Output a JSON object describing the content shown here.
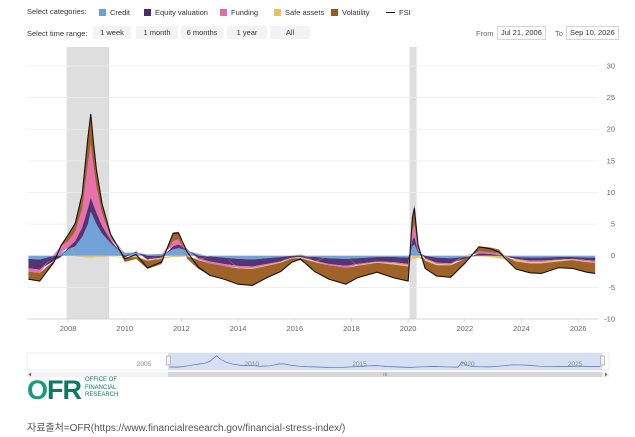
{
  "legend": {
    "title": "Select categories:",
    "items": [
      {
        "label": "Credit",
        "color": "#6a9fd8",
        "kind": "box"
      },
      {
        "label": "Equity valuation",
        "color": "#4a2a6e",
        "kind": "box"
      },
      {
        "label": "Funding",
        "color": "#e86aa8",
        "kind": "box"
      },
      {
        "label": "Safe assets",
        "color": "#e8c060",
        "kind": "box"
      },
      {
        "label": "Volatility",
        "color": "#9a5a1e",
        "kind": "box"
      },
      {
        "label": "FSI",
        "color": "#111111",
        "kind": "line"
      }
    ]
  },
  "time_range": {
    "title": "Select time range:",
    "buttons": [
      "1 week",
      "1 month",
      "6 months",
      "1 year",
      "All"
    ],
    "from_label": "From",
    "from_value": "Jul 21, 2006",
    "to_label": "To",
    "to_value": "Sep 10, 2026"
  },
  "chart_data": {
    "type": "area",
    "stacked": true,
    "x_domain": [
      2006.55,
      2026.7
    ],
    "ylim": [
      -10,
      33
    ],
    "yticks": [
      -10,
      -5,
      0,
      5,
      10,
      15,
      20,
      25,
      30
    ],
    "xticks": [
      2008,
      2010,
      2012,
      2014,
      2016,
      2018,
      2020,
      2022,
      2024,
      2026
    ],
    "grid": true,
    "legend_position": "top",
    "shaded_periods": [
      [
        2007.95,
        2009.45
      ],
      [
        2020.05,
        2020.3
      ]
    ],
    "x": [
      2006.6,
      2007.0,
      2007.5,
      2007.75,
      2008.0,
      2008.25,
      2008.5,
      2008.7,
      2008.8,
      2008.9,
      2009.0,
      2009.2,
      2009.5,
      2010.0,
      2010.4,
      2010.8,
      2011.3,
      2011.7,
      2011.9,
      2012.2,
      2012.6,
      2013.0,
      2013.5,
      2014.0,
      2014.5,
      2015.0,
      2015.5,
      2015.9,
      2016.2,
      2016.7,
      2017.2,
      2017.8,
      2018.2,
      2018.9,
      2019.5,
      2020.0,
      2020.15,
      2020.22,
      2020.35,
      2020.6,
      2021.0,
      2021.5,
      2022.0,
      2022.5,
      2022.9,
      2023.2,
      2023.8,
      2024.3,
      2024.7,
      2025.3,
      2025.8,
      2026.3,
      2026.6
    ],
    "series": [
      {
        "name": "Credit",
        "color": "#6a9fd8",
        "values": [
          -0.5,
          -0.6,
          0.0,
          0.5,
          1.0,
          1.5,
          3.0,
          5.0,
          7.0,
          6.0,
          5.0,
          3.5,
          2.0,
          0.5,
          0.5,
          0.2,
          0.3,
          1.0,
          1.2,
          0.8,
          0.3,
          -0.1,
          -0.3,
          -0.5,
          -0.6,
          -0.4,
          -0.2,
          0.0,
          0.2,
          -0.2,
          -0.4,
          -0.5,
          -0.4,
          -0.2,
          -0.2,
          -0.3,
          1.5,
          1.8,
          0.5,
          0.0,
          -0.3,
          -0.4,
          -0.2,
          0.0,
          0.0,
          -0.1,
          -0.2,
          -0.3,
          -0.3,
          -0.2,
          -0.2,
          -0.3,
          -0.3
        ]
      },
      {
        "name": "Equity valuation",
        "color": "#4a2a6e",
        "values": [
          -1.5,
          -1.6,
          -0.8,
          -0.2,
          0.3,
          0.8,
          1.5,
          2.5,
          2.2,
          2.0,
          1.8,
          1.2,
          0.5,
          -0.3,
          0.2,
          -0.6,
          -0.3,
          0.5,
          0.6,
          0.1,
          -0.4,
          -0.8,
          -1.0,
          -1.1,
          -1.1,
          -0.9,
          -0.7,
          -0.3,
          -0.2,
          -0.6,
          -0.9,
          -1.1,
          -0.9,
          -0.7,
          -0.8,
          -1.0,
          1.0,
          1.2,
          0.3,
          -0.4,
          -0.8,
          -0.8,
          -0.3,
          0.4,
          0.3,
          0.1,
          -0.3,
          -0.5,
          -0.5,
          -0.4,
          -0.3,
          -0.4,
          -0.5
        ]
      },
      {
        "name": "Funding",
        "color": "#e86aa8",
        "values": [
          -0.5,
          -0.5,
          0.2,
          1.0,
          1.0,
          1.5,
          3.0,
          7.0,
          8.5,
          6.0,
          4.0,
          2.0,
          0.5,
          0.0,
          0.0,
          -0.1,
          0.0,
          0.8,
          0.8,
          0.2,
          -0.2,
          -0.3,
          -0.3,
          -0.3,
          -0.3,
          -0.2,
          -0.1,
          0.0,
          0.0,
          -0.1,
          -0.2,
          -0.3,
          -0.2,
          -0.1,
          -0.2,
          -0.2,
          1.5,
          2.0,
          0.3,
          -0.1,
          -0.2,
          -0.2,
          0.0,
          0.3,
          0.2,
          0.3,
          -0.1,
          -0.2,
          -0.2,
          -0.1,
          -0.1,
          -0.2,
          -0.2
        ]
      },
      {
        "name": "Safe assets",
        "color": "#e8c060",
        "values": [
          0.0,
          0.0,
          0.0,
          0.0,
          0.0,
          -0.1,
          -0.2,
          -0.3,
          -0.3,
          -0.3,
          -0.2,
          -0.2,
          -0.1,
          -0.1,
          -0.2,
          -0.1,
          -0.2,
          -0.2,
          -0.2,
          -0.1,
          -0.1,
          0.0,
          0.0,
          -0.1,
          -0.1,
          -0.1,
          -0.1,
          -0.1,
          -0.2,
          -0.1,
          0.0,
          0.0,
          -0.1,
          -0.1,
          -0.2,
          -0.2,
          -0.4,
          -0.5,
          -0.3,
          -0.3,
          -0.2,
          -0.1,
          0.0,
          -0.1,
          -0.2,
          -0.3,
          -0.3,
          -0.2,
          -0.2,
          -0.2,
          -0.1,
          -0.1,
          -0.1
        ]
      },
      {
        "name": "Volatility",
        "color": "#9a5a1e",
        "values": [
          -1.2,
          -1.3,
          -0.4,
          0.3,
          1.0,
          1.5,
          2.5,
          4.5,
          5.0,
          4.0,
          3.0,
          1.7,
          0.5,
          -0.6,
          -0.3,
          -1.3,
          -0.8,
          1.4,
          1.2,
          -0.4,
          -1.4,
          -1.9,
          -2.1,
          -2.5,
          -2.6,
          -1.9,
          -1.4,
          -0.6,
          -0.3,
          -1.5,
          -2.2,
          -2.6,
          -1.9,
          -1.5,
          -2.1,
          -2.3,
          2.4,
          3.0,
          0.9,
          -1.2,
          -1.7,
          -1.9,
          -0.7,
          0.8,
          0.8,
          0.6,
          -1.2,
          -1.5,
          -1.6,
          -1.0,
          -1.3,
          -1.6,
          -1.7
        ]
      }
    ],
    "fsi": [
      -3.7,
      -4.0,
      -1.0,
      1.6,
      3.3,
      5.1,
      9.8,
      18.7,
      22.4,
      17.7,
      13.6,
      8.2,
      3.4,
      -0.5,
      0.2,
      -1.9,
      -1.0,
      3.5,
      3.6,
      0.6,
      -1.8,
      -3.1,
      -3.7,
      -4.5,
      -4.7,
      -3.5,
      -2.5,
      -1.0,
      -0.5,
      -2.5,
      -3.7,
      -4.5,
      -3.5,
      -2.6,
      -3.5,
      -4.0,
      6.0,
      7.5,
      1.7,
      -2.0,
      -3.2,
      -3.4,
      -1.2,
      1.4,
      1.1,
      0.6,
      -2.1,
      -2.7,
      -2.8,
      -1.9,
      -2.0,
      -2.6,
      -2.8
    ],
    "navigator": {
      "x_domain": [
        2000,
        2027
      ],
      "xticks": [
        2005,
        2010,
        2015,
        2020,
        2025
      ],
      "selection": [
        2006.55,
        2026.7
      ]
    }
  },
  "footer": {
    "logo_mark_o": "O",
    "logo_mark_fr": "FR",
    "logo_line1": "OFFICE OF",
    "logo_line2": "FINANCIAL",
    "logo_line3": "RESEARCH",
    "source": "자료출처=OFR(https://www.financialresearch.gov/financial-stress-index/)"
  }
}
